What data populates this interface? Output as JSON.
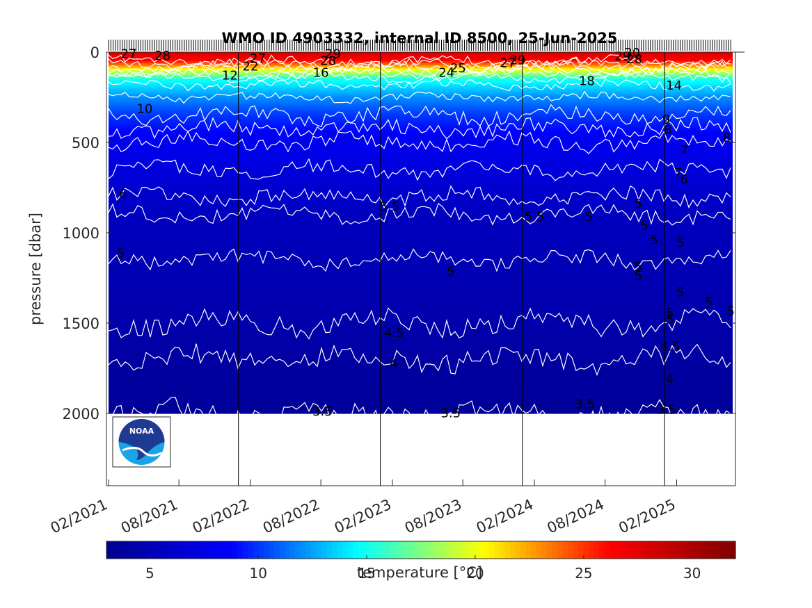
{
  "chart_data": {
    "type": "heatmap",
    "title": "WMO ID 4903332, internal ID 8500, 25-Jun-2025",
    "ylabel": "pressure [dbar]",
    "colorbar_label": "temperature [°C]",
    "y_axis_direction": "reversed",
    "ylim": [
      0,
      2400
    ],
    "y_ticks": [
      0,
      500,
      1000,
      1500,
      2000
    ],
    "y_tick_labels": [
      "0",
      "500",
      "1000",
      "1500",
      "2000"
    ],
    "x_range": [
      "2021-02-01",
      "2025-06-25"
    ],
    "x_ticks": [
      "2021-02-01",
      "2021-08-01",
      "2022-02-01",
      "2022-08-01",
      "2023-02-01",
      "2023-08-01",
      "2024-02-01",
      "2024-08-01",
      "2025-02-01"
    ],
    "x_tick_labels": [
      "02/2021",
      "08/2021",
      "02/2022",
      "08/2022",
      "02/2023",
      "08/2023",
      "02/2024",
      "08/2024",
      "02/2025"
    ],
    "year_boundaries": [
      "2022-01-01",
      "2023-01-01",
      "2024-01-01",
      "2025-01-01"
    ],
    "colorbar_range": [
      3,
      32
    ],
    "colorbar_ticks": [
      5,
      10,
      15,
      20,
      25,
      30
    ],
    "colorbar_tick_labels": [
      "5",
      "10",
      "15",
      "20",
      "25",
      "30"
    ],
    "colormap": [
      "#00008f",
      "#0000ff",
      "#00ffff",
      "#ffff00",
      "#ff0000",
      "#800000"
    ],
    "grid": false,
    "depth_profile": [
      {
        "pressure": 0,
        "temperature": 28
      },
      {
        "pressure": 50,
        "temperature": 26
      },
      {
        "pressure": 100,
        "temperature": 20
      },
      {
        "pressure": 150,
        "temperature": 15
      },
      {
        "pressure": 250,
        "temperature": 12
      },
      {
        "pressure": 350,
        "temperature": 10
      },
      {
        "pressure": 500,
        "temperature": 8
      },
      {
        "pressure": 650,
        "temperature": 7
      },
      {
        "pressure": 800,
        "temperature": 6
      },
      {
        "pressure": 900,
        "temperature": 5.5
      },
      {
        "pressure": 1150,
        "temperature": 5
      },
      {
        "pressure": 1500,
        "temperature": 4.5
      },
      {
        "pressure": 1700,
        "temperature": 4
      },
      {
        "pressure": 2000,
        "temperature": 3.5
      }
    ],
    "isotherms": [
      5.5,
      5,
      4.5,
      4,
      3.5
    ],
    "contour_labels": [
      {
        "text": "27",
        "date": "2021-03-25",
        "pressure": 5
      },
      {
        "text": "28",
        "date": "2021-06-20",
        "pressure": 15
      },
      {
        "text": "10",
        "date": "2021-05-05",
        "pressure": 310
      },
      {
        "text": "6",
        "date": "2021-03-10",
        "pressure": 780
      },
      {
        "text": "5",
        "date": "2021-03-05",
        "pressure": 1110
      },
      {
        "text": "12",
        "date": "2021-12-10",
        "pressure": 125
      },
      {
        "text": "22",
        "date": "2022-02-01",
        "pressure": 75
      },
      {
        "text": "27",
        "date": "2022-02-20",
        "pressure": 30
      },
      {
        "text": "16",
        "date": "2022-08-01",
        "pressure": 110
      },
      {
        "text": "28",
        "date": "2022-08-20",
        "pressure": 45
      },
      {
        "text": "29",
        "date": "2022-09-01",
        "pressure": 5
      },
      {
        "text": "5.5",
        "date": "2023-01-25",
        "pressure": 850
      },
      {
        "text": "4.5",
        "date": "2023-02-05",
        "pressure": 1550
      },
      {
        "text": "4",
        "date": "2023-02-05",
        "pressure": 1720
      },
      {
        "text": "3.5",
        "date": "2022-08-05",
        "pressure": 1985
      },
      {
        "text": "24",
        "date": "2023-06-20",
        "pressure": 110
      },
      {
        "text": "25",
        "date": "2023-07-20",
        "pressure": 85
      },
      {
        "text": "5",
        "date": "2023-07-01",
        "pressure": 1210
      },
      {
        "text": "3.5",
        "date": "2023-07-01",
        "pressure": 1995
      },
      {
        "text": "27",
        "date": "2023-11-25",
        "pressure": 55
      },
      {
        "text": "29",
        "date": "2023-12-20",
        "pressure": 40
      },
      {
        "text": "5.5",
        "date": "2024-02-01",
        "pressure": 905
      },
      {
        "text": "18",
        "date": "2024-06-15",
        "pressure": 155
      },
      {
        "text": "3.5",
        "date": "2024-06-10",
        "pressure": 1945
      },
      {
        "text": "29",
        "date": "2024-09-15",
        "pressure": 20
      },
      {
        "text": "30",
        "date": "2024-10-10",
        "pressure": 0
      },
      {
        "text": "28",
        "date": "2024-10-15",
        "pressure": 35
      },
      {
        "text": "14",
        "date": "2025-01-25",
        "pressure": 180
      },
      {
        "text": "9",
        "date": "2025-01-05",
        "pressure": 370
      },
      {
        "text": "8",
        "date": "2025-01-10",
        "pressure": 425
      },
      {
        "text": "8",
        "date": "2025-06-10",
        "pressure": 470
      },
      {
        "text": "7",
        "date": "2025-02-20",
        "pressure": 540
      },
      {
        "text": "7",
        "date": "2025-02-05",
        "pressure": 665
      },
      {
        "text": "6",
        "date": "2025-02-20",
        "pressure": 700
      },
      {
        "text": "5",
        "date": "2025-02-10",
        "pressure": 1050
      },
      {
        "text": "4.5",
        "date": "2025-01-15",
        "pressure": 1625
      },
      {
        "text": "4",
        "date": "2025-01-15",
        "pressure": 1805
      },
      {
        "text": "3.5",
        "date": "2025-01-05",
        "pressure": 1975
      },
      {
        "text": "5",
        "date": "2024-06-20",
        "pressure": 905
      },
      {
        "text": "5",
        "date": "2024-10-25",
        "pressure": 835
      },
      {
        "text": "5",
        "date": "2024-11-10",
        "pressure": 955
      },
      {
        "text": "5",
        "date": "2024-12-05",
        "pressure": 1035
      },
      {
        "text": "5",
        "date": "2024-10-25",
        "pressure": 1185
      },
      {
        "text": "5",
        "date": "2024-10-25",
        "pressure": 1235
      },
      {
        "text": "5",
        "date": "2025-02-10",
        "pressure": 1325
      },
      {
        "text": "5",
        "date": "2025-04-25",
        "pressure": 1380
      },
      {
        "text": "5",
        "date": "2025-06-20",
        "pressure": 1430
      },
      {
        "text": "5",
        "date": "2025-01-15",
        "pressure": 1440
      },
      {
        "text": "5",
        "date": "2025-01-15",
        "pressure": 1475
      }
    ]
  },
  "logo": {
    "text": "NOAA",
    "name": "NOAA"
  }
}
